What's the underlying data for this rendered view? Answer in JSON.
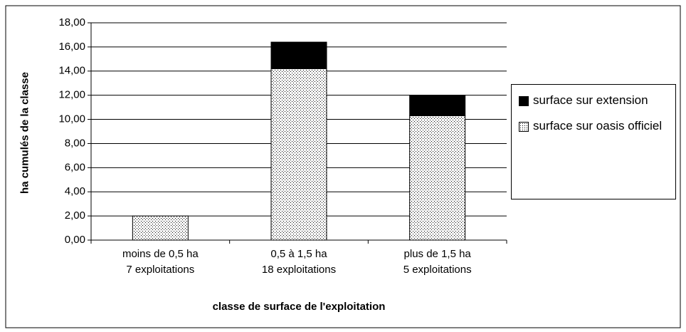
{
  "chart_data": {
    "type": "stacked_bar",
    "x_label": "classe de surface de l'exploitation",
    "y_label": "ha cumulés de la classe",
    "categories": [
      "moins de 0,5 ha\n7 exploitations",
      "0,5 à 1,5 ha\n18 exploitations",
      "plus de 1,5 ha\n5 exploitations"
    ],
    "series": [
      {
        "name": "surface sur oasis officiel",
        "color": "#000000",
        "pattern": "dots",
        "values": [
          2.0,
          14.2,
          10.3
        ]
      },
      {
        "name": "surface sur extension",
        "color": "#000000",
        "pattern": "solid",
        "values": [
          0,
          2.2,
          1.7
        ]
      }
    ],
    "ylim": [
      0,
      18
    ],
    "yticks": [
      {
        "value": 0,
        "label": "0,00"
      },
      {
        "value": 2,
        "label": "2,00"
      },
      {
        "value": 4,
        "label": "4,00"
      },
      {
        "value": 6,
        "label": "6,00"
      },
      {
        "value": 8,
        "label": "8,00"
      },
      {
        "value": 10,
        "label": "10,00"
      },
      {
        "value": 12,
        "label": "12,00"
      },
      {
        "value": 14,
        "label": "14,00"
      },
      {
        "value": 16,
        "label": "16,00"
      },
      {
        "value": 18,
        "label": "18,00"
      }
    ],
    "grid": true,
    "legend": "right"
  }
}
